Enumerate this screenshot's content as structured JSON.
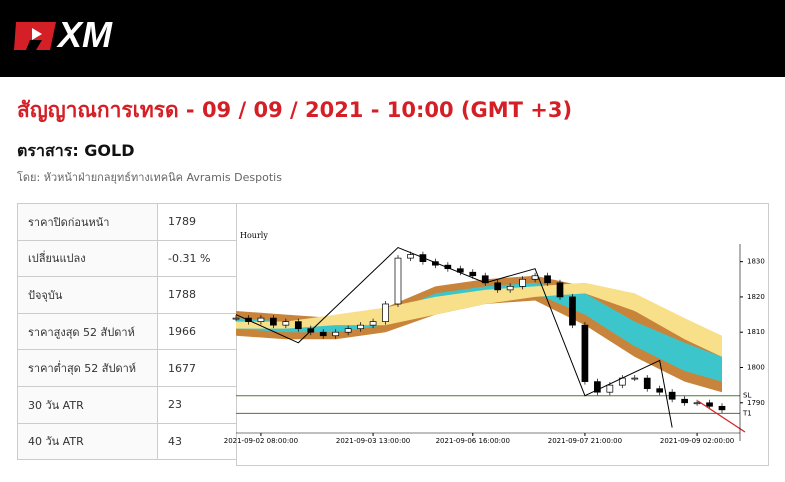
{
  "header": {
    "logo": "XM"
  },
  "title": "สัญญาณการเทรด - 09 / 09 / 2021 - 10:00 (GMT +3)",
  "instrument": "ตราสาร: GOLD",
  "author": "โดย: หัวหน้าฝ่ายกลยุทธ์ทางเทคนิค Avramis Despotis",
  "table": {
    "rows": [
      [
        "ราคาปิดก่อนหน้า",
        "1789"
      ],
      [
        "เปลี่ยนแปลง",
        "-0.31 %"
      ],
      [
        "ปัจจุบัน",
        "1788"
      ],
      [
        "ราคาสูงสุด 52 สัปดาห์",
        "1966"
      ],
      [
        "ราคาต่ำสุด 52 สัปดาห์",
        "1677"
      ],
      [
        "30 วัน ATR",
        "23"
      ],
      [
        "40 วัน ATR",
        "43"
      ]
    ]
  },
  "chart_data": {
    "type": "candlestick",
    "title": "Hourly",
    "values": [
      1814,
      1813,
      1814,
      1812,
      1813,
      1811,
      1810,
      1809,
      1810,
      1811,
      1812,
      1813,
      1818,
      1831,
      1832,
      1830,
      1829,
      1828,
      1827,
      1826,
      1824,
      1822,
      1823,
      1825,
      1826,
      1824,
      1820,
      1812,
      1796,
      1793,
      1795,
      1797,
      1797,
      1794,
      1793,
      1791,
      1790,
      1790,
      1789,
      1788
    ],
    "xticks": [
      {
        "value": 2,
        "label": "2021-09-02 08:00:00"
      },
      {
        "value": 11,
        "label": "2021-09-03 13:00:00"
      },
      {
        "value": 19,
        "label": "2021-09-06 16:00:00"
      },
      {
        "value": 28,
        "label": "2021-09-07 21:00:00"
      },
      {
        "value": 37,
        "label": "2021-09-09 02:00:00"
      }
    ],
    "xlim": [
      0,
      39
    ],
    "ylim": [
      1782,
      1835
    ],
    "yticks": [
      1790,
      1800,
      1810,
      1820,
      1830
    ],
    "band_x": [
      0,
      4,
      8,
      12,
      16,
      20,
      24,
      28,
      32,
      36,
      39
    ],
    "bands": [
      {
        "color": "#c8843a",
        "lower": [
          1809,
          1808,
          1808,
          1810,
          1815,
          1818,
          1819,
          1812,
          1803,
          1796,
          1793
        ],
        "upper": [
          1816,
          1815,
          1814,
          1817,
          1823,
          1825,
          1826,
          1823,
          1816,
          1810,
          1806
        ]
      },
      {
        "color": "#3cc6cc",
        "lower": [
          1811,
          1810,
          1810,
          1812,
          1817,
          1820,
          1821,
          1815,
          1806,
          1799,
          1796
        ],
        "upper": [
          1814,
          1813,
          1812,
          1815,
          1821,
          1823,
          1824,
          1821,
          1813,
          1807,
          1803
        ]
      },
      {
        "color": "#f8e08a",
        "lower": [
          1811,
          1811,
          1812,
          1812,
          1815,
          1818,
          1820,
          1821,
          1816,
          1808,
          1803
        ],
        "upper": [
          1813,
          1813,
          1815,
          1817,
          1820,
          1822,
          1823,
          1824,
          1821,
          1814,
          1809
        ]
      }
    ],
    "zigzag": {
      "x": [
        0,
        5,
        13,
        20,
        24,
        28,
        34,
        35
      ],
      "values": [
        1815,
        1807,
        1834,
        1824,
        1828,
        1792,
        1802,
        1783
      ]
    },
    "levels": [
      {
        "label": "SL",
        "value": 1792,
        "color": "#4a7a2e"
      },
      {
        "label": "T1",
        "value": 1787,
        "color": "#4a7a2e"
      }
    ]
  }
}
